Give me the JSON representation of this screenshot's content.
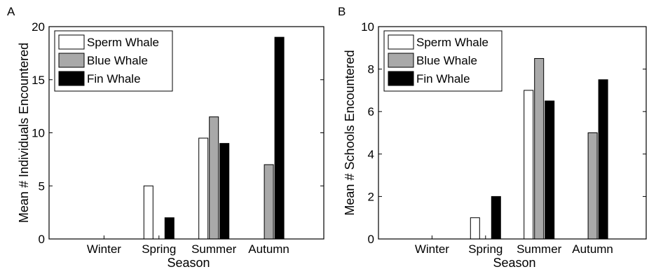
{
  "chart_data": [
    {
      "panel_label": "A",
      "type": "bar",
      "categories": [
        "Winter",
        "Spring",
        "Summer",
        "Autumn"
      ],
      "series": [
        {
          "name": "Sperm Whale",
          "values": [
            0,
            5,
            9.5,
            0
          ],
          "color": "#ffffff"
        },
        {
          "name": "Blue Whale",
          "values": [
            0,
            0,
            11.5,
            7
          ],
          "color": "#a9a9a9"
        },
        {
          "name": "Fin Whale",
          "values": [
            0,
            2,
            9,
            19
          ],
          "color": "#000000"
        }
      ],
      "xlabel": "Season",
      "ylabel": "Mean # Individuals Encountered",
      "ylim": [
        0,
        20
      ],
      "yticks": [
        "0",
        "5",
        "10",
        "15",
        "20"
      ],
      "legend_position": "top-left",
      "grid": false
    },
    {
      "panel_label": "B",
      "type": "bar",
      "categories": [
        "Winter",
        "Spring",
        "Summer",
        "Autumn"
      ],
      "series": [
        {
          "name": "Sperm Whale",
          "values": [
            0,
            1,
            7,
            0
          ],
          "color": "#ffffff"
        },
        {
          "name": "Blue Whale",
          "values": [
            0,
            0,
            8.5,
            5
          ],
          "color": "#a9a9a9"
        },
        {
          "name": "Fin Whale",
          "values": [
            0,
            2,
            6.5,
            7.5
          ],
          "color": "#000000"
        }
      ],
      "xlabel": "Season",
      "ylabel": "Mean # Schools Encountered",
      "ylim": [
        0,
        10
      ],
      "yticks": [
        "0",
        "2",
        "4",
        "6",
        "8",
        "10"
      ],
      "legend_position": "top-left",
      "grid": false
    }
  ]
}
